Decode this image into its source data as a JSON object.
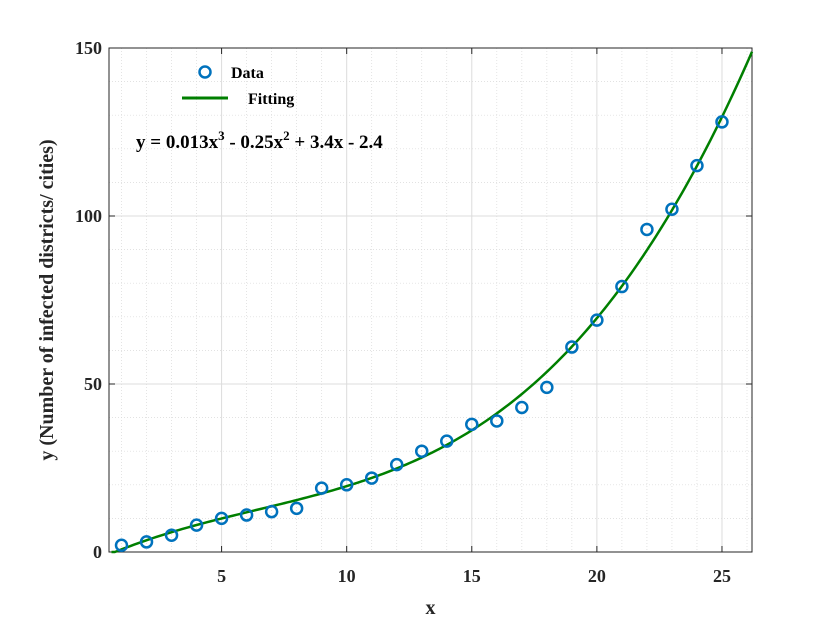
{
  "chart_data": {
    "type": "scatter",
    "xlabel": "x",
    "ylabel": "y (Number of infected districts/ cities)",
    "xlim": [
      0.5,
      26.2
    ],
    "ylim": [
      0,
      150
    ],
    "xticks": [
      5,
      10,
      15,
      20,
      25
    ],
    "yticks": [
      0,
      50,
      100,
      150
    ],
    "grid": true,
    "legend_position": "top-left",
    "series": [
      {
        "name": "Data",
        "kind": "markers",
        "color": "#0072BD",
        "x": [
          1,
          2,
          3,
          4,
          5,
          6,
          7,
          8,
          9,
          10,
          11,
          12,
          13,
          14,
          15,
          16,
          17,
          18,
          19,
          20,
          21,
          22,
          23,
          24,
          25
        ],
        "y": [
          2,
          3,
          5,
          8,
          10,
          11,
          12,
          13,
          19,
          20,
          22,
          26,
          30,
          33,
          38,
          39,
          43,
          49,
          61,
          69,
          79,
          96,
          102,
          115,
          128
        ]
      },
      {
        "name": "Fitting",
        "kind": "line",
        "color": "#007F00",
        "coefficients": [
          0.013,
          -0.25,
          3.4,
          -2.4
        ],
        "x_range": [
          0.6,
          26.2
        ]
      }
    ],
    "annotation": {
      "prefix": "y = 0.013x",
      "sup1": "3",
      "mid": " - 0.25x",
      "sup2": "2",
      "suffix": " + 3.4x - 2.4"
    }
  }
}
